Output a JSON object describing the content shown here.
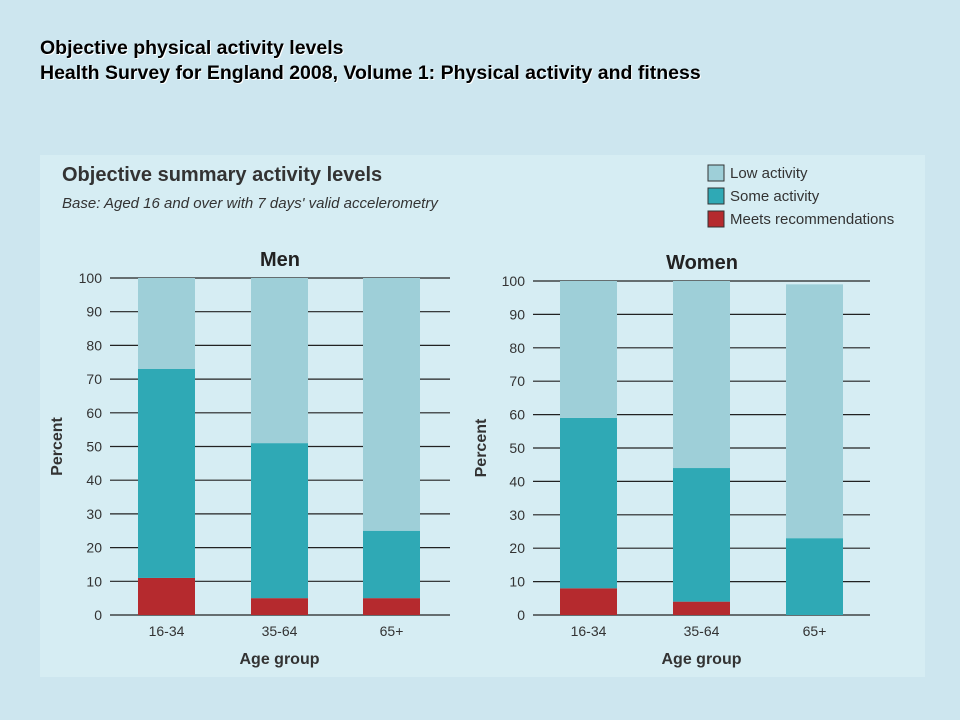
{
  "slide": {
    "title_line1": "Objective physical activity levels",
    "title_line2": "Health Survey for England 2008, Volume 1: Physical activity and fitness"
  },
  "figure": {
    "title": "Objective summary activity levels",
    "subtitle": "Base: Aged 16 and over with 7 days' valid accelerometry"
  },
  "legend": [
    {
      "label": "Low activity",
      "color": "#9ecfd8"
    },
    {
      "label": "Some activity",
      "color": "#2fa9b5"
    },
    {
      "label": "Meets recommendations",
      "color": "#b52a2e"
    }
  ],
  "chart_data": [
    {
      "type": "bar",
      "stacked": true,
      "title": "Men",
      "xlabel": "Age group",
      "ylabel": "Percent",
      "ylim": [
        0,
        100
      ],
      "yticks": [
        0,
        10,
        20,
        30,
        40,
        50,
        60,
        70,
        80,
        90,
        100
      ],
      "categories": [
        "16-34",
        "35-64",
        "65+"
      ],
      "series": [
        {
          "name": "Meets recommendations",
          "color": "#b52a2e",
          "values": [
            11,
            5,
            5
          ]
        },
        {
          "name": "Some activity",
          "color": "#2fa9b5",
          "values": [
            62,
            46,
            20
          ]
        },
        {
          "name": "Low activity",
          "color": "#9ecfd8",
          "values": [
            27,
            49,
            75
          ]
        }
      ]
    },
    {
      "type": "bar",
      "stacked": true,
      "title": "Women",
      "xlabel": "Age group",
      "ylabel": "Percent",
      "ylim": [
        0,
        100
      ],
      "yticks": [
        0,
        10,
        20,
        30,
        40,
        50,
        60,
        70,
        80,
        90,
        100
      ],
      "categories": [
        "16-34",
        "35-64",
        "65+"
      ],
      "series": [
        {
          "name": "Meets recommendations",
          "color": "#b52a2e",
          "values": [
            8,
            4,
            0
          ]
        },
        {
          "name": "Some activity",
          "color": "#2fa9b5",
          "values": [
            51,
            40,
            23
          ]
        },
        {
          "name": "Low activity",
          "color": "#9ecfd8",
          "values": [
            41,
            56,
            76
          ]
        }
      ]
    }
  ]
}
